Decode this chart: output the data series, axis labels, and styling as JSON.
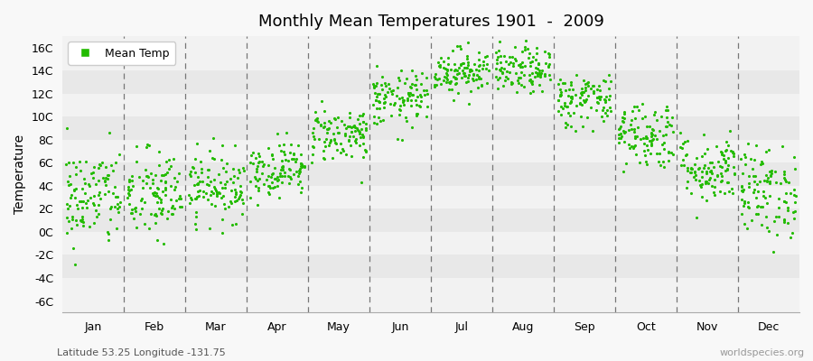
{
  "title": "Monthly Mean Temperatures 1901  -  2009",
  "ylabel": "Temperature",
  "subtitle": "Latitude 53.25 Longitude -131.75",
  "watermark": "worldspecies.org",
  "dot_color": "#22bb00",
  "bg_light": "#f2f2f2",
  "bg_dark": "#e8e8e8",
  "fig_bg": "#f8f8f8",
  "legend_label": "Mean Temp",
  "months": [
    "Jan",
    "Feb",
    "Mar",
    "Apr",
    "May",
    "Jun",
    "Jul",
    "Aug",
    "Sep",
    "Oct",
    "Nov",
    "Dec"
  ],
  "yticks": [
    -6,
    -4,
    -2,
    0,
    2,
    4,
    6,
    8,
    10,
    12,
    14,
    16
  ],
  "ytick_labels": [
    "-6C",
    "-4C",
    "-2C",
    "0C",
    "2C",
    "4C",
    "6C",
    "8C",
    "10C",
    "12C",
    "14C",
    "16C"
  ],
  "ylim": [
    -7,
    17
  ],
  "xlim": [
    0,
    12
  ],
  "n_years": 109,
  "monthly_means": [
    3.0,
    3.2,
    4.0,
    5.5,
    8.5,
    11.5,
    14.0,
    14.0,
    11.5,
    8.5,
    5.5,
    3.5
  ],
  "monthly_stds": [
    2.2,
    2.0,
    1.5,
    1.2,
    1.2,
    1.2,
    1.0,
    1.0,
    1.2,
    1.5,
    1.5,
    2.0
  ],
  "seed": 42,
  "dot_size": 5,
  "vline_color": "#777777",
  "spine_color": "#aaaaaa"
}
